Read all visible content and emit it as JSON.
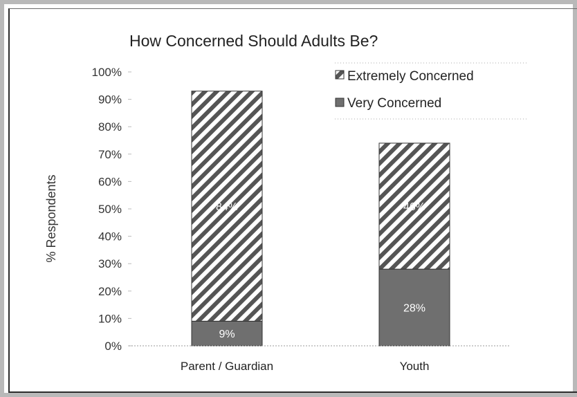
{
  "chart_data": {
    "type": "bar",
    "stacked": true,
    "title": "How Concerned Should Adults Be?",
    "ylabel": "% Respondents",
    "xlabel": "",
    "categories": [
      "Parent / Guardian",
      "Youth"
    ],
    "ylim": [
      0,
      100
    ],
    "y_ticks": [
      "0%",
      "10%",
      "20%",
      "30%",
      "40%",
      "50%",
      "60%",
      "70%",
      "80%",
      "90%",
      "100%"
    ],
    "series": [
      {
        "name": "Very Concerned",
        "values": [
          9,
          28
        ],
        "labels": [
          "9%",
          "28%"
        ],
        "color": "#6f6f6f",
        "pattern": "solid"
      },
      {
        "name": "Extremely Concerned",
        "values": [
          84,
          46
        ],
        "labels": [
          "84%",
          "46%"
        ],
        "color": "#ffffff",
        "pattern": "diagonal-hatch"
      }
    ],
    "legend_order": [
      "Extremely Concerned",
      "Very Concerned"
    ],
    "legend_position": "top-right",
    "grid": false
  }
}
